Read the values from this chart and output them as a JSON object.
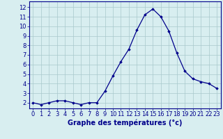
{
  "hours": [
    0,
    1,
    2,
    3,
    4,
    5,
    6,
    7,
    8,
    9,
    10,
    11,
    12,
    13,
    14,
    15,
    16,
    17,
    18,
    19,
    20,
    21,
    22,
    23
  ],
  "temperatures": [
    2,
    1.8,
    2,
    2.2,
    2.2,
    2,
    1.8,
    2,
    2,
    3.2,
    4.8,
    6.3,
    7.6,
    9.6,
    11.2,
    11.8,
    11.0,
    9.5,
    7.2,
    5.3,
    4.5,
    4.2,
    4.0,
    3.5
  ],
  "line_color": "#00008b",
  "marker": "D",
  "marker_size": 1.8,
  "bg_color": "#d8eef0",
  "grid_color": "#a8c8cc",
  "xlabel": "Graphe des températures (°c)",
  "xlabel_color": "#00008b",
  "ylabel_ticks": [
    2,
    3,
    4,
    5,
    6,
    7,
    8,
    9,
    10,
    11,
    12
  ],
  "xlim": [
    -0.5,
    23.5
  ],
  "ylim": [
    1.4,
    12.6
  ],
  "tick_color": "#00008b",
  "axis_color": "#00008b",
  "font_size": 6.0,
  "xlabel_fontsize": 7.0
}
